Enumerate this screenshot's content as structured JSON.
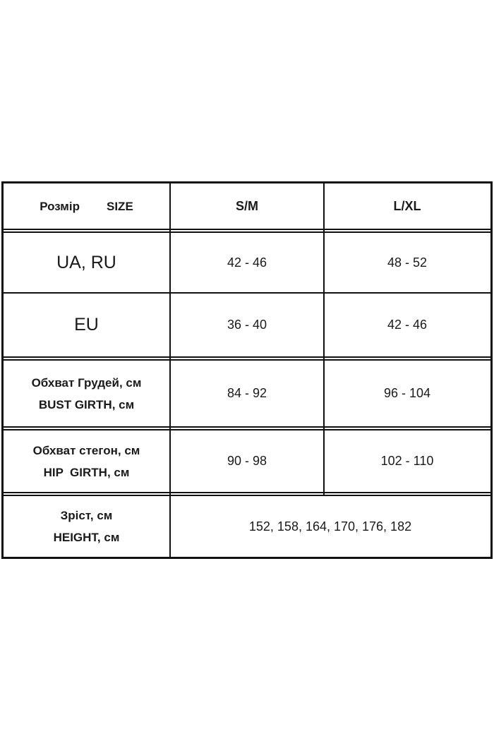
{
  "table": {
    "header": {
      "label_ua": "Розмір",
      "label_en": "SIZE",
      "columns": [
        "S/M",
        "L/XL"
      ]
    },
    "rows": [
      {
        "label": "UA, RU",
        "values": [
          "42 - 46",
          "48 - 52"
        ]
      },
      {
        "label": "EU",
        "values": [
          "36 - 40",
          "42 - 46"
        ]
      },
      {
        "label_ua": "Обхват Грудей, см",
        "label_en": "BUST GIRTH, см",
        "values": [
          "84 - 92",
          "96 - 104"
        ]
      },
      {
        "label_ua": "Обхват стегон, см",
        "label_en": "HIP  GIRTH, см",
        "values": [
          "90 - 98",
          "102 - 110"
        ]
      },
      {
        "label_ua": "Зріст, см",
        "label_en": "HEIGHT, см",
        "value": "152, 158, 164, 170, 176, 182"
      }
    ]
  }
}
